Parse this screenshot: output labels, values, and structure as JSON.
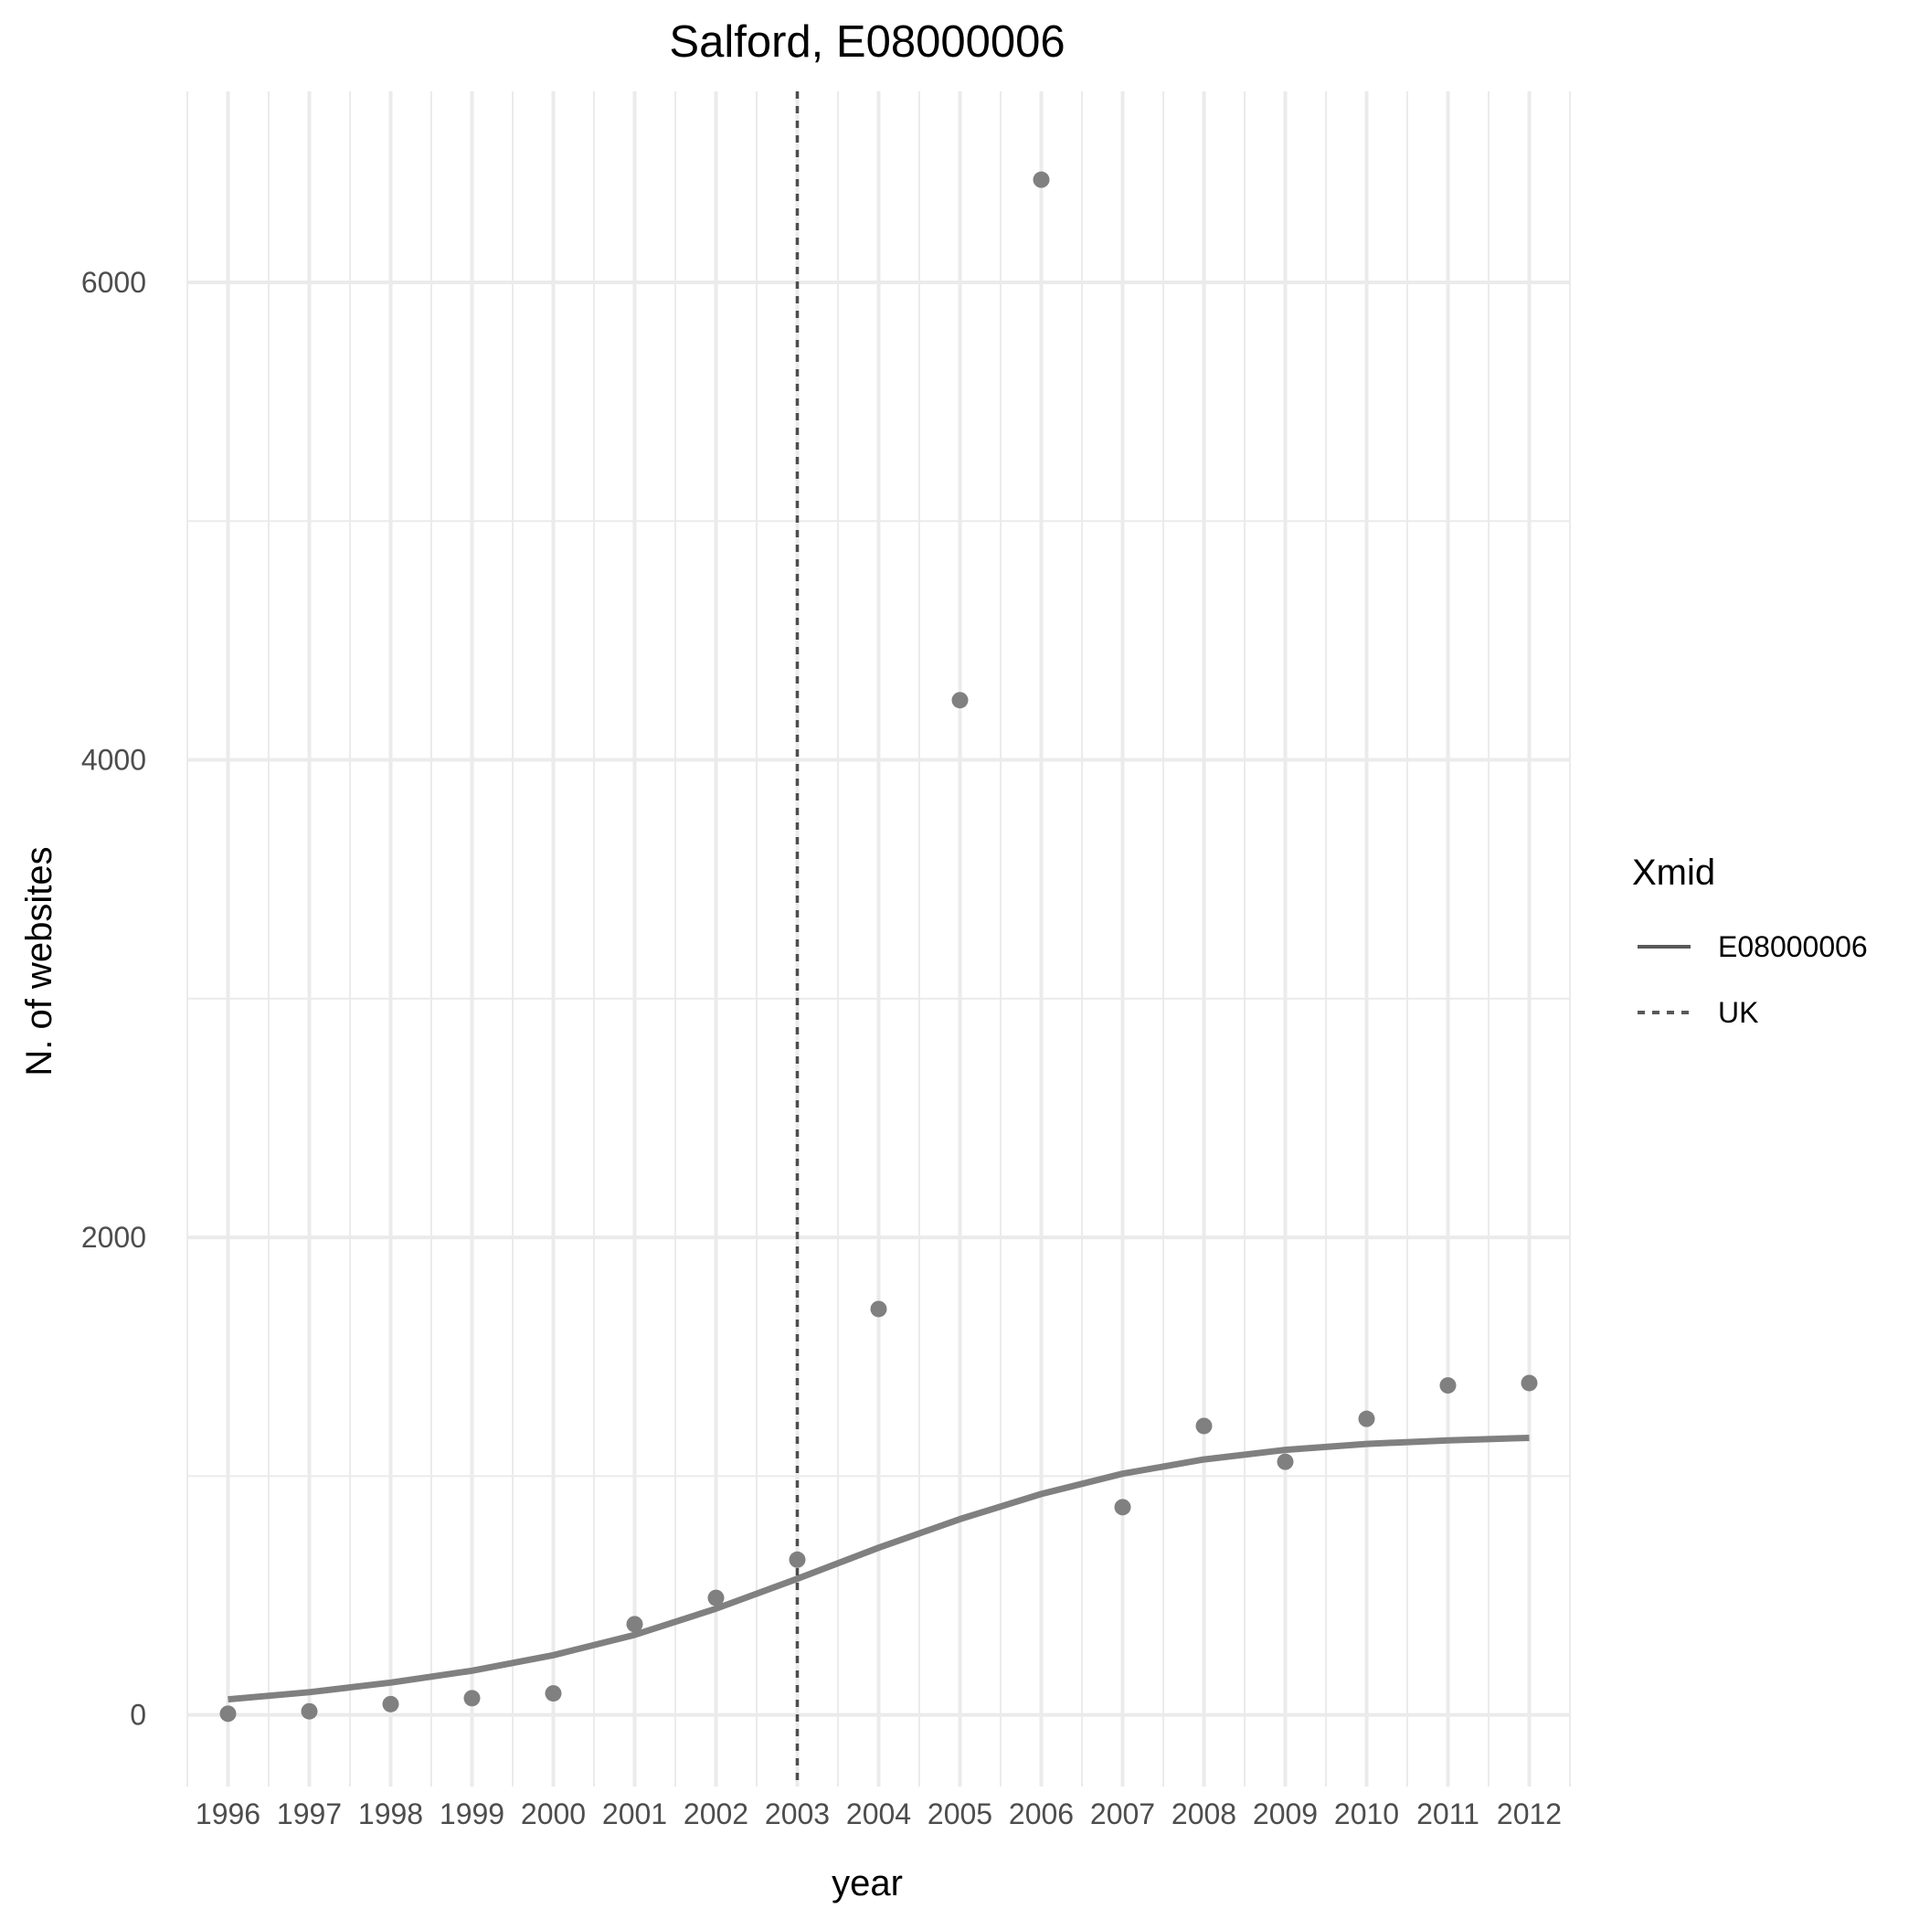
{
  "chart_data": {
    "type": "scatter",
    "title": "Salford, E08000006",
    "xlabel": "year",
    "ylabel": "N. of websites",
    "x_ticks": [
      "1996",
      "1997",
      "1998",
      "1999",
      "2000",
      "2001",
      "2002",
      "2003",
      "2004",
      "2005",
      "2006",
      "2007",
      "2008",
      "2009",
      "2010",
      "2011",
      "2012"
    ],
    "y_ticks": [
      0,
      2000,
      4000,
      6000
    ],
    "y_tick_labels": [
      "0",
      "2000",
      "4000",
      "6000"
    ],
    "xlim": [
      1995.5,
      2012.5
    ],
    "ylim": [
      -300,
      6800
    ],
    "grid": true,
    "points": {
      "x": [
        1996,
        1997,
        1998,
        1999,
        2000,
        2001,
        2002,
        2003,
        2004,
        2005,
        2006,
        2007,
        2008,
        2009,
        2010,
        2011,
        2012
      ],
      "y": [
        5,
        15,
        45,
        70,
        90,
        380,
        490,
        650,
        1700,
        4250,
        6430,
        870,
        1210,
        1060,
        1240,
        1380,
        1390
      ]
    },
    "series": [
      {
        "name": "E08000006",
        "linetype": "solid",
        "x": [
          1996,
          1997,
          1998,
          1999,
          2000,
          2001,
          2002,
          2003,
          2004,
          2005,
          2006,
          2007,
          2008,
          2009,
          2010,
          2011,
          2012
        ],
        "y": [
          65,
          95,
          135,
          185,
          250,
          335,
          445,
          570,
          700,
          820,
          925,
          1010,
          1070,
          1110,
          1135,
          1150,
          1160
        ]
      },
      {
        "name": "UK",
        "linetype": "dashed",
        "type": "vline",
        "x": 2003
      }
    ],
    "legend": {
      "title": "Xmid",
      "placement": "right",
      "entries": [
        "E08000006",
        "UK"
      ]
    },
    "colors": {
      "points": "#808080",
      "line": "#808080",
      "vline": "#4d4d4d",
      "legend_line": "#595959"
    }
  }
}
